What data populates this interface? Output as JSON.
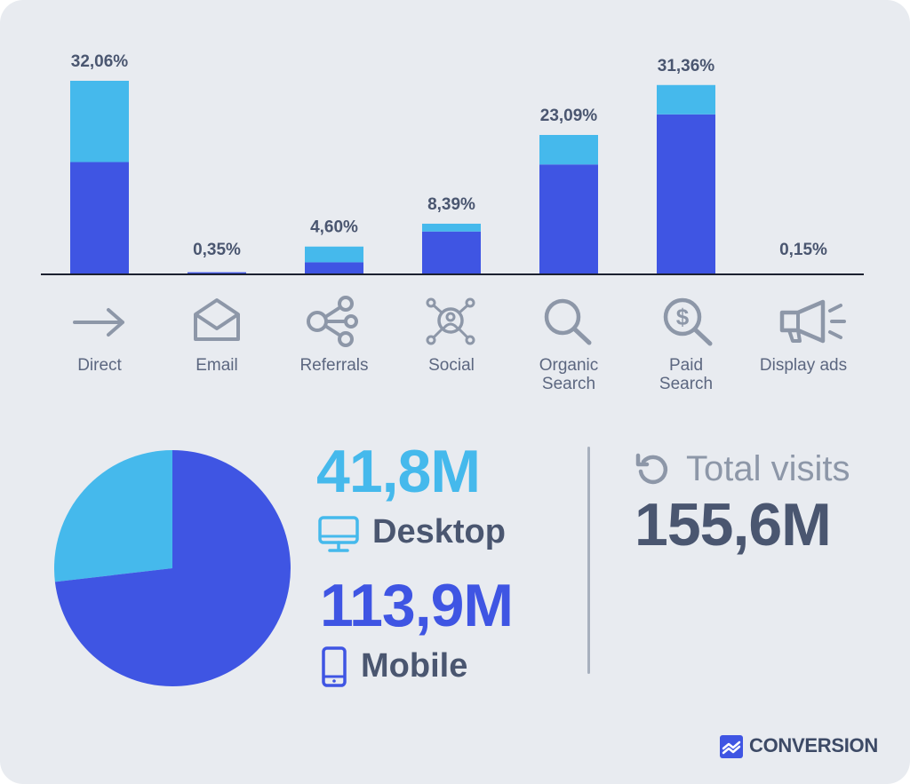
{
  "chart_data": [
    {
      "type": "bar",
      "stacked": true,
      "categories": [
        "Direct",
        "Email",
        "Referrals",
        "Social",
        "Organic\nSearch",
        "Paid\nSearch",
        "Display ads"
      ],
      "totals": [
        32.06,
        0.35,
        4.6,
        8.39,
        23.09,
        31.36,
        0.15
      ],
      "value_labels": [
        "32,06%",
        "0,35%",
        "4,60%",
        "8,39%",
        "23,09%",
        "31,36%",
        "0,15%"
      ],
      "series": [
        {
          "values": [
            18.6,
            0.35,
            2.0,
            7.1,
            18.2,
            26.5,
            0.15
          ]
        },
        {
          "values": [
            13.46,
            0.0,
            2.6,
            1.29,
            4.89,
            4.86,
            0.0
          ]
        }
      ],
      "colors": [
        "#3f55e3",
        "#45b9ec"
      ],
      "ylim": [
        0,
        32.06
      ],
      "grid": false
    },
    {
      "type": "pie",
      "labels": [
        "Desktop",
        "Mobile"
      ],
      "values": [
        41.8,
        113.9
      ],
      "colors": [
        "#45b9ec",
        "#3f55e3"
      ]
    }
  ],
  "icons": [
    "arrow-right-icon",
    "envelope-icon",
    "share-nodes-icon",
    "social-network-icon",
    "magnifier-icon",
    "dollar-magnifier-icon",
    "megaphone-icon",
    "monitor-icon",
    "smartphone-icon",
    "refresh-icon",
    "conversion-logo-icon"
  ],
  "stats": {
    "desktop_value": "41,8M",
    "desktop_label": "Desktop",
    "mobile_value": "113,9M",
    "mobile_label": "Mobile",
    "total_label": "Total visits",
    "total_value": "155,6M"
  },
  "brand": {
    "name": "CONVERSION"
  },
  "colors": {
    "background": "#e8ebf0",
    "mobile": "#3f55e3",
    "desktop": "#45b9ec",
    "text_dark": "#4a5670",
    "icon": "#8d97a8"
  }
}
